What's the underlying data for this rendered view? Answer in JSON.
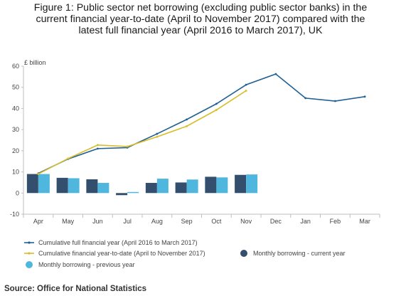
{
  "title": "Figure 1: Public sector net borrowing (excluding public sector banks) in the\ncurrent financial year-to-date (April to November 2017) compared with the\nlatest full financial year (April 2016 to March 2017), UK",
  "source": "Source: Office for National Statistics",
  "colors": {
    "full_year_line": "#206095",
    "ytd_line": "#d8bd2a",
    "current_year_bars": "#344e6e",
    "previous_year_bars": "#4fb7de",
    "axis": "#bfbfbf",
    "text": "#444444"
  },
  "chart_data": {
    "type": "bar+line",
    "ylabel": "£ billion",
    "ylim": [
      -10,
      60
    ],
    "yticks": [
      -10,
      0,
      10,
      20,
      30,
      40,
      50,
      60
    ],
    "grid": false,
    "legend_position": "bottom",
    "categories": [
      "Apr",
      "May",
      "Jun",
      "Jul",
      "Aug",
      "Sep",
      "Oct",
      "Nov",
      "Dec",
      "Jan",
      "Feb",
      "Mar"
    ],
    "series": [
      {
        "name": "Cumulative full financial year (April 2016 to March 2017)",
        "kind": "line",
        "values": [
          9.3,
          16.1,
          21.0,
          21.5,
          28.0,
          34.8,
          42.2,
          51.2,
          56.3,
          44.9,
          43.5,
          45.6
        ]
      },
      {
        "name": "Cumulative financial year-to-date (April to November 2017)",
        "kind": "line",
        "values": [
          9.0,
          16.3,
          22.7,
          22.0,
          26.6,
          31.6,
          39.3,
          48.4,
          null,
          null,
          null,
          null
        ]
      },
      {
        "name": "Monthly borrowing - current year",
        "kind": "bar",
        "values": [
          9.0,
          7.2,
          6.5,
          -1.0,
          4.8,
          5.0,
          7.7,
          8.6,
          null,
          null,
          null,
          null
        ]
      },
      {
        "name": "Monthly borrowing - previous year",
        "kind": "bar",
        "values": [
          9.0,
          7.0,
          4.8,
          0.5,
          6.8,
          6.4,
          7.4,
          8.8,
          null,
          null,
          null,
          null
        ]
      }
    ]
  }
}
